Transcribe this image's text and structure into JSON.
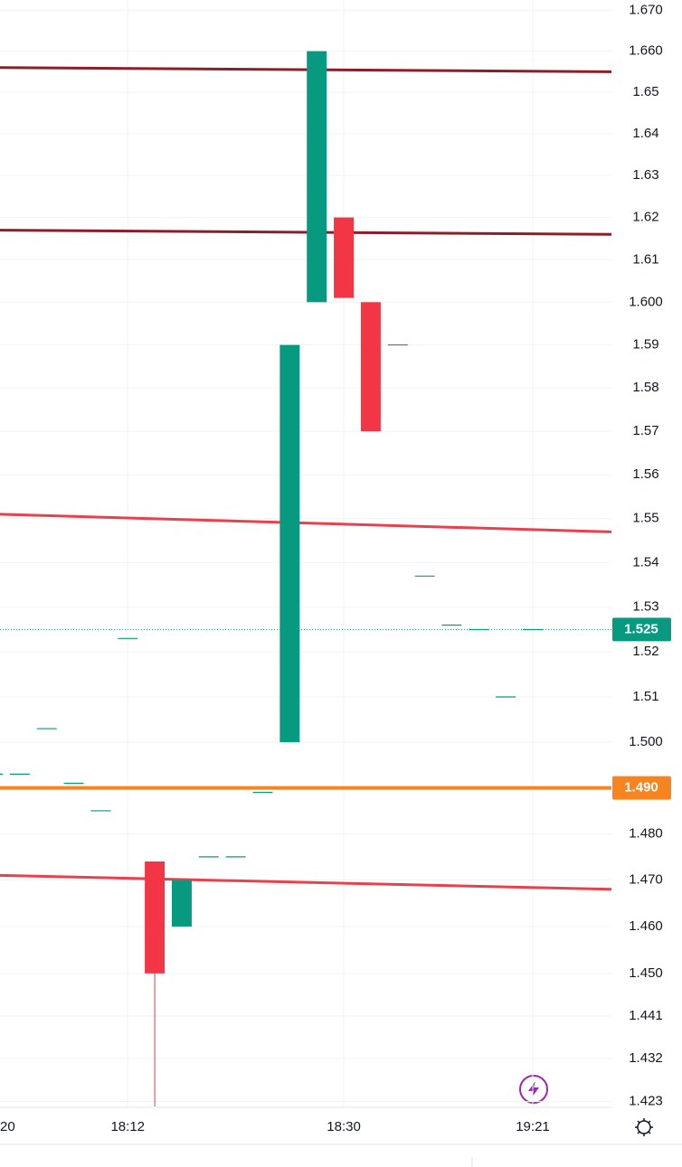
{
  "chart_data": {
    "type": "candlestick",
    "log_scale": true,
    "grid": true,
    "up_color": "#089981",
    "down_color": "#f23645",
    "categories": [
      "20",
      null,
      null,
      null,
      null,
      "18:12",
      null,
      null,
      null,
      null,
      null,
      null,
      null,
      "18:30",
      null,
      null,
      null,
      null,
      null,
      null,
      "19:21"
    ],
    "open": [
      1.493,
      1.493,
      1.503,
      1.491,
      1.485,
      1.523,
      1.474,
      1.46,
      1.475,
      1.475,
      1.489,
      1.5,
      1.6,
      1.62,
      1.6,
      1.59,
      1.537,
      1.526,
      1.525,
      1.51,
      1.525
    ],
    "high": [
      1.493,
      1.493,
      1.503,
      1.491,
      1.485,
      1.523,
      1.474,
      1.47,
      1.475,
      1.475,
      1.489,
      1.59,
      1.66,
      1.62,
      1.6,
      1.59,
      1.537,
      1.526,
      1.525,
      1.51,
      1.525
    ],
    "low": [
      1.493,
      1.493,
      1.503,
      1.491,
      1.485,
      1.523,
      1.422,
      1.46,
      1.475,
      1.475,
      1.489,
      1.5,
      1.6,
      1.601,
      1.57,
      1.59,
      1.537,
      1.526,
      1.525,
      1.51,
      1.525
    ],
    "close": [
      1.493,
      1.493,
      1.503,
      1.491,
      1.485,
      1.523,
      1.45,
      1.47,
      1.475,
      1.475,
      1.489,
      1.59,
      1.66,
      1.601,
      1.57,
      1.59,
      1.537,
      1.526,
      1.525,
      1.51,
      1.525
    ],
    "ylim": [
      1.4218,
      1.6725
    ],
    "yticks": [
      {
        "value": 1.67,
        "label": "1.670"
      },
      {
        "value": 1.66,
        "label": "1.660"
      },
      1.65,
      1.64,
      1.63,
      1.62,
      1.61,
      {
        "value": 1.6,
        "label": "1.600"
      },
      1.59,
      1.58,
      1.57,
      1.56,
      1.55,
      1.54,
      1.53,
      1.52,
      1.51,
      {
        "value": 1.5,
        "label": "1.500"
      },
      {
        "value": 1.48,
        "label": "1.480"
      },
      {
        "value": 1.47,
        "label": "1.470"
      },
      {
        "value": 1.46,
        "label": "1.460"
      },
      {
        "value": 1.45,
        "label": "1.450"
      },
      1.441,
      1.432,
      1.423
    ],
    "trend_lines": [
      {
        "color": "#8b1e2b",
        "start": 1.656,
        "end": 1.655
      },
      {
        "color": "#8b1e2b",
        "start": 1.617,
        "end": 1.616
      },
      {
        "color": "#e8414e",
        "start": 1.551,
        "end": 1.547
      },
      {
        "color": "#e8414e",
        "start": 1.471,
        "end": 1.468
      }
    ],
    "price_lines": [
      {
        "value": 1.49,
        "label": "1.490",
        "color": "#f7841f",
        "style": "solid"
      },
      {
        "value": 1.525,
        "label": "1.525",
        "color": "#089981",
        "style": "dotted"
      }
    ]
  }
}
